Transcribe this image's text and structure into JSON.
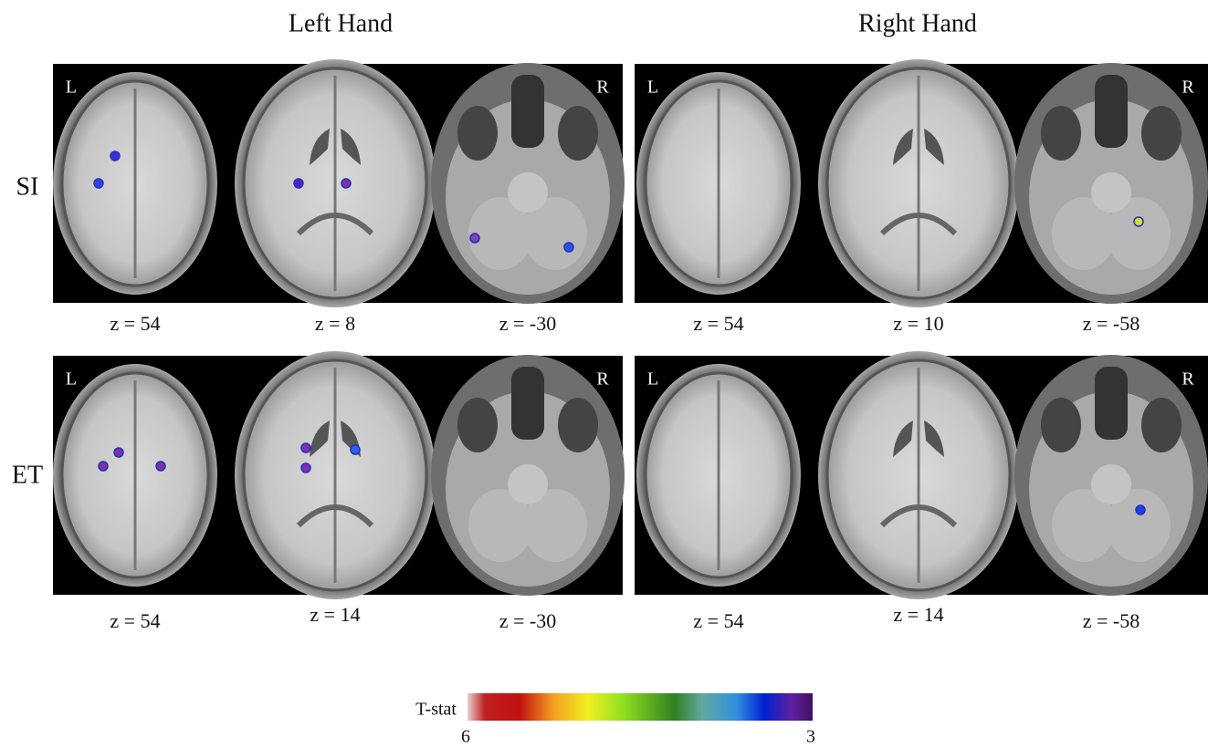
{
  "header": {
    "columns": [
      "Left Hand",
      "Right Hand"
    ]
  },
  "rows": [
    {
      "label": "SI",
      "panels": [
        {
          "side_labels": [
            "L",
            "R"
          ],
          "z": [
            "z = 54",
            "z = 8",
            "z = -30"
          ]
        },
        {
          "side_labels": [
            "L",
            "R"
          ],
          "z": [
            "z = 54",
            "z = 10",
            "z = -58"
          ]
        }
      ]
    },
    {
      "label": "ET",
      "panels": [
        {
          "side_labels": [
            "L",
            "R"
          ],
          "z": [
            "z = 54",
            "z = 14",
            "z = -30"
          ]
        },
        {
          "side_labels": [
            "L",
            "R"
          ],
          "z": [
            "z = 54",
            "z = 14",
            "z = -58"
          ]
        }
      ]
    }
  ],
  "colorbar": {
    "label": "T-stat",
    "min_label": "6",
    "max_label": "3"
  }
}
